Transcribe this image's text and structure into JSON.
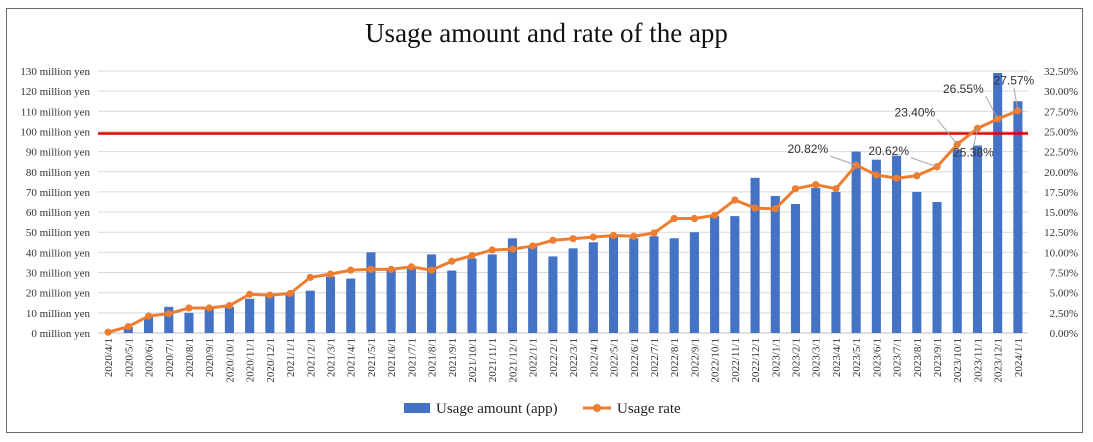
{
  "chart_data": {
    "type": "bar+line",
    "title": "Usage amount and rate of the app",
    "categories": [
      "2020/4/1",
      "2020/5/1",
      "2020/6/1",
      "2020/7/1",
      "2020/8/1",
      "2020/9/1",
      "2020/10/1",
      "2020/11/1",
      "2020/12/1",
      "2021/1/1",
      "2021/2/1",
      "2021/3/1",
      "2021/4/1",
      "2021/5/1",
      "2021/6/1",
      "2021/7/1",
      "2021/8/1",
      "2021/9/1",
      "2021/10/1",
      "2021/11/1",
      "2021/12/1",
      "2022/1/1",
      "2022/2/1",
      "2022/3/1",
      "2022/4/1",
      "2022/5/1",
      "2022/6/1",
      "2022/7/1",
      "2022/8/1",
      "2022/9/1",
      "2022/10/1",
      "2022/11/1",
      "2022/12/1",
      "2023/1/1",
      "2023/2/1",
      "2023/3/1",
      "2023/4/1",
      "2023/5/1",
      "2023/6/1",
      "2023/7/1",
      "2023/8/1",
      "2023/9/1",
      "2023/10/1",
      "2023/11/1",
      "2023/12/1",
      "2024/1/1"
    ],
    "series": [
      {
        "name": "Usage amount (app)",
        "type": "bar",
        "axis": "left",
        "color": "#4472c4",
        "values": [
          0,
          3,
          8,
          13,
          10,
          12,
          13,
          17,
          19,
          20,
          21,
          28,
          27,
          40,
          32,
          33,
          39,
          31,
          37,
          39,
          47,
          43,
          38,
          42,
          45,
          49,
          47,
          48,
          47,
          50,
          58,
          58,
          77,
          68,
          64,
          72,
          70,
          90,
          86,
          88,
          70,
          65,
          91,
          93,
          129,
          115
        ]
      },
      {
        "name": "Usage rate",
        "type": "line",
        "axis": "right",
        "color": "#ed7d31",
        "values": [
          0.1,
          0.8,
          2.1,
          2.4,
          3.1,
          3.1,
          3.4,
          4.8,
          4.7,
          4.9,
          6.9,
          7.3,
          7.8,
          7.9,
          7.9,
          8.2,
          7.8,
          8.9,
          9.6,
          10.3,
          10.4,
          10.8,
          11.5,
          11.7,
          11.9,
          12.1,
          12.0,
          12.4,
          14.2,
          14.2,
          14.6,
          16.5,
          15.5,
          15.4,
          17.9,
          18.4,
          17.9,
          20.82,
          19.6,
          19.2,
          19.5,
          20.62,
          23.4,
          25.38,
          26.55,
          27.57
        ]
      }
    ],
    "y_left": {
      "min": 0,
      "max": 130,
      "step": 10,
      "tick_labels": [
        "0 million yen",
        "10 million yen",
        "20 million yen",
        "30 million yen",
        "40 million yen",
        "50 million yen",
        "60 million yen",
        "70 million yen",
        "80 million yen",
        "90 million yen",
        "100 million yen",
        "110 million yen",
        "120 million yen",
        "130 million yen"
      ]
    },
    "y_right": {
      "min": 0,
      "max": 32.5,
      "step": 2.5,
      "tick_labels": [
        "0.00%",
        "2.50%",
        "5.00%",
        "7.50%",
        "10.00%",
        "12.50%",
        "15.00%",
        "17.50%",
        "20.00%",
        "22.50%",
        "25.00%",
        "27.50%",
        "30.00%",
        "32.50%"
      ]
    },
    "reference_line": {
      "axis": "left",
      "value": 99,
      "color": "#e00000"
    },
    "data_labels": [
      {
        "index": 37,
        "text": "20.82%"
      },
      {
        "index": 41,
        "text": "20.62%"
      },
      {
        "index": 42,
        "text": "23.40%"
      },
      {
        "index": 43,
        "text": "25.38%"
      },
      {
        "index": 44,
        "text": "26.55%"
      },
      {
        "index": 45,
        "text": "27.57%"
      }
    ],
    "grid": true,
    "legend_position": "bottom"
  }
}
